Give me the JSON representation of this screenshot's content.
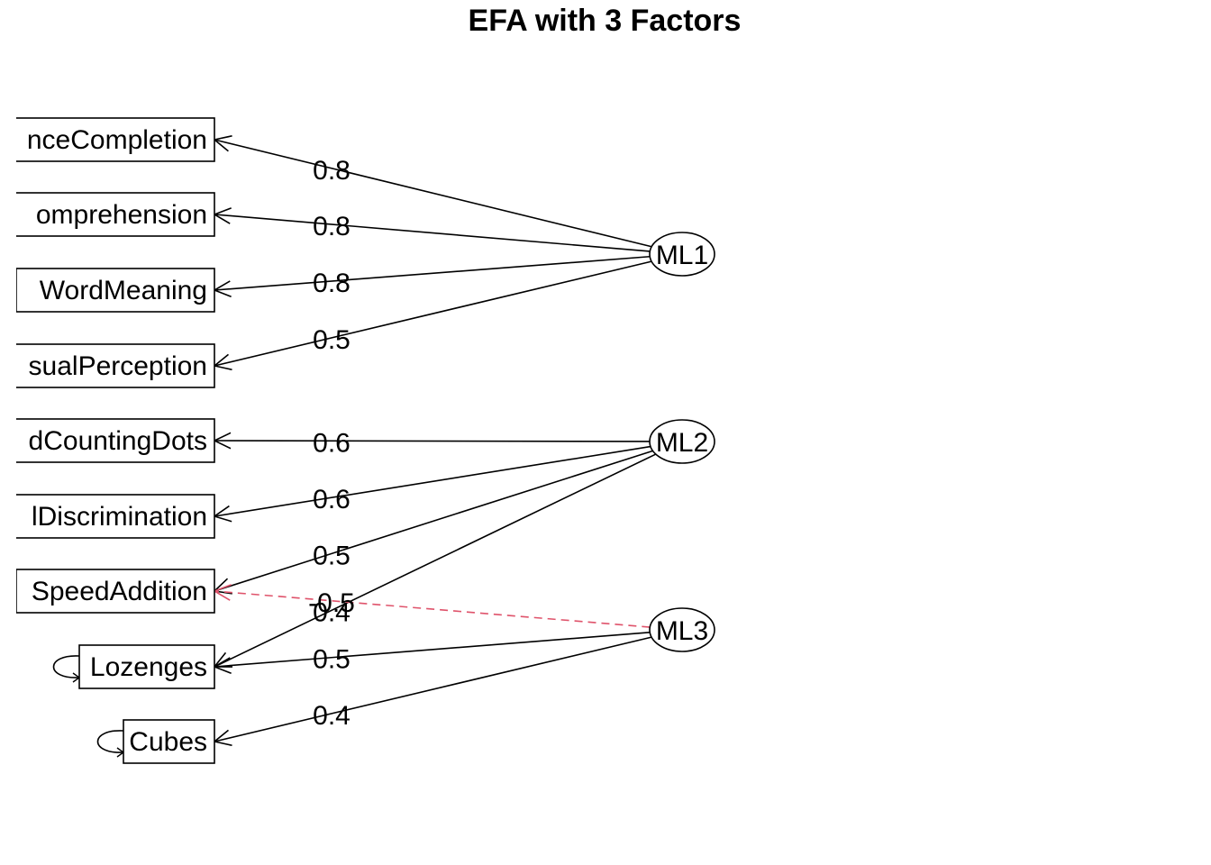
{
  "title": "EFA with 3 Factors",
  "colors": {
    "line": "#000000",
    "negative": "#df536b",
    "background": "#ffffff"
  },
  "factors": [
    {
      "id": "ML1",
      "label": "ML1"
    },
    {
      "id": "ML2",
      "label": "ML2"
    },
    {
      "id": "ML3",
      "label": "ML3"
    }
  ],
  "variables": [
    {
      "id": "sentence",
      "label": "nceCompletion"
    },
    {
      "id": "paragraph",
      "label": "omprehension"
    },
    {
      "id": "word",
      "label": "WordMeaning"
    },
    {
      "id": "visual",
      "label": "sualPerception"
    },
    {
      "id": "dots",
      "label": "dCountingDots"
    },
    {
      "id": "discrim",
      "label": "lDiscrimination"
    },
    {
      "id": "speed",
      "label": "SpeedAddition"
    },
    {
      "id": "lozenges",
      "label": "Lozenges",
      "self_loop": true
    },
    {
      "id": "cubes",
      "label": "Cubes",
      "self_loop": true
    }
  ],
  "loadings": [
    {
      "from": "ML1",
      "to": "sentence",
      "value": "0.8",
      "dashed": false
    },
    {
      "from": "ML1",
      "to": "paragraph",
      "value": "0.8",
      "dashed": false
    },
    {
      "from": "ML1",
      "to": "word",
      "value": "0.8",
      "dashed": false
    },
    {
      "from": "ML1",
      "to": "visual",
      "value": "0.5",
      "dashed": false
    },
    {
      "from": "ML2",
      "to": "dots",
      "value": "0.6",
      "dashed": false
    },
    {
      "from": "ML2",
      "to": "discrim",
      "value": "0.6",
      "dashed": false
    },
    {
      "from": "ML2",
      "to": "speed",
      "value": "0.5",
      "dashed": false
    },
    {
      "from": "ML2",
      "to": "lozenges",
      "value": "0.4",
      "dashed": false
    },
    {
      "from": "ML3",
      "to": "speed",
      "value": "-0.5",
      "dashed": true
    },
    {
      "from": "ML3",
      "to": "lozenges",
      "value": "0.5",
      "dashed": false
    },
    {
      "from": "ML3",
      "to": "cubes",
      "value": "0.4",
      "dashed": false
    }
  ]
}
